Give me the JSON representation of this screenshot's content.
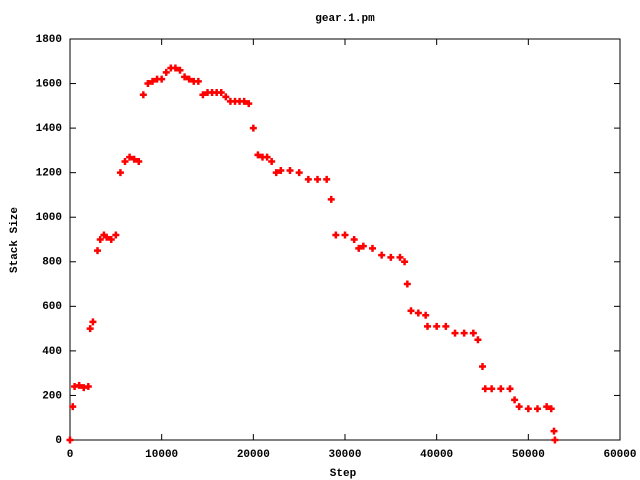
{
  "chart_data": {
    "type": "scatter",
    "title": "gear.1.pm",
    "xlabel": "Step",
    "ylabel": "Stack Size",
    "color": "#ff0000",
    "xlim": [
      0,
      60000
    ],
    "xticks": [
      0,
      10000,
      20000,
      30000,
      40000,
      50000,
      60000
    ],
    "ylim": [
      0,
      1800
    ],
    "yticks": [
      0,
      200,
      400,
      600,
      800,
      1000,
      1200,
      1400,
      1600,
      1800
    ],
    "x": [
      0,
      300,
      500,
      1000,
      1500,
      2000,
      2200,
      2500,
      3000,
      3300,
      3700,
      4000,
      4500,
      5000,
      5500,
      6000,
      6500,
      7000,
      7500,
      8000,
      8500,
      9000,
      9500,
      10000,
      10500,
      11000,
      11500,
      12000,
      12500,
      13000,
      13500,
      14000,
      14500,
      15000,
      15500,
      16000,
      16500,
      17000,
      17500,
      18000,
      18500,
      19000,
      19500,
      20000,
      20500,
      21000,
      21500,
      22000,
      22500,
      23000,
      24000,
      25000,
      26000,
      27000,
      28000,
      28500,
      29000,
      30000,
      31000,
      31500,
      32000,
      33000,
      34000,
      35000,
      36000,
      36500,
      36800,
      37200,
      38000,
      38800,
      39000,
      40000,
      41000,
      42000,
      43000,
      44000,
      44500,
      45000,
      45300,
      46000,
      47000,
      48000,
      48500,
      49000,
      50000,
      51000,
      52000,
      52500,
      52800,
      52900
    ],
    "values": [
      0,
      150,
      240,
      245,
      235,
      240,
      500,
      530,
      850,
      900,
      920,
      910,
      900,
      920,
      1200,
      1250,
      1270,
      1260,
      1250,
      1550,
      1600,
      1610,
      1620,
      1620,
      1650,
      1670,
      1670,
      1660,
      1630,
      1620,
      1610,
      1610,
      1550,
      1560,
      1560,
      1560,
      1560,
      1540,
      1520,
      1520,
      1520,
      1520,
      1510,
      1400,
      1280,
      1270,
      1270,
      1250,
      1200,
      1210,
      1210,
      1200,
      1170,
      1170,
      1170,
      1080,
      920,
      920,
      900,
      860,
      870,
      860,
      830,
      820,
      820,
      800,
      700,
      580,
      570,
      560,
      510,
      510,
      510,
      480,
      480,
      480,
      450,
      330,
      230,
      230,
      230,
      230,
      180,
      150,
      140,
      140,
      150,
      140,
      40,
      0
    ]
  }
}
